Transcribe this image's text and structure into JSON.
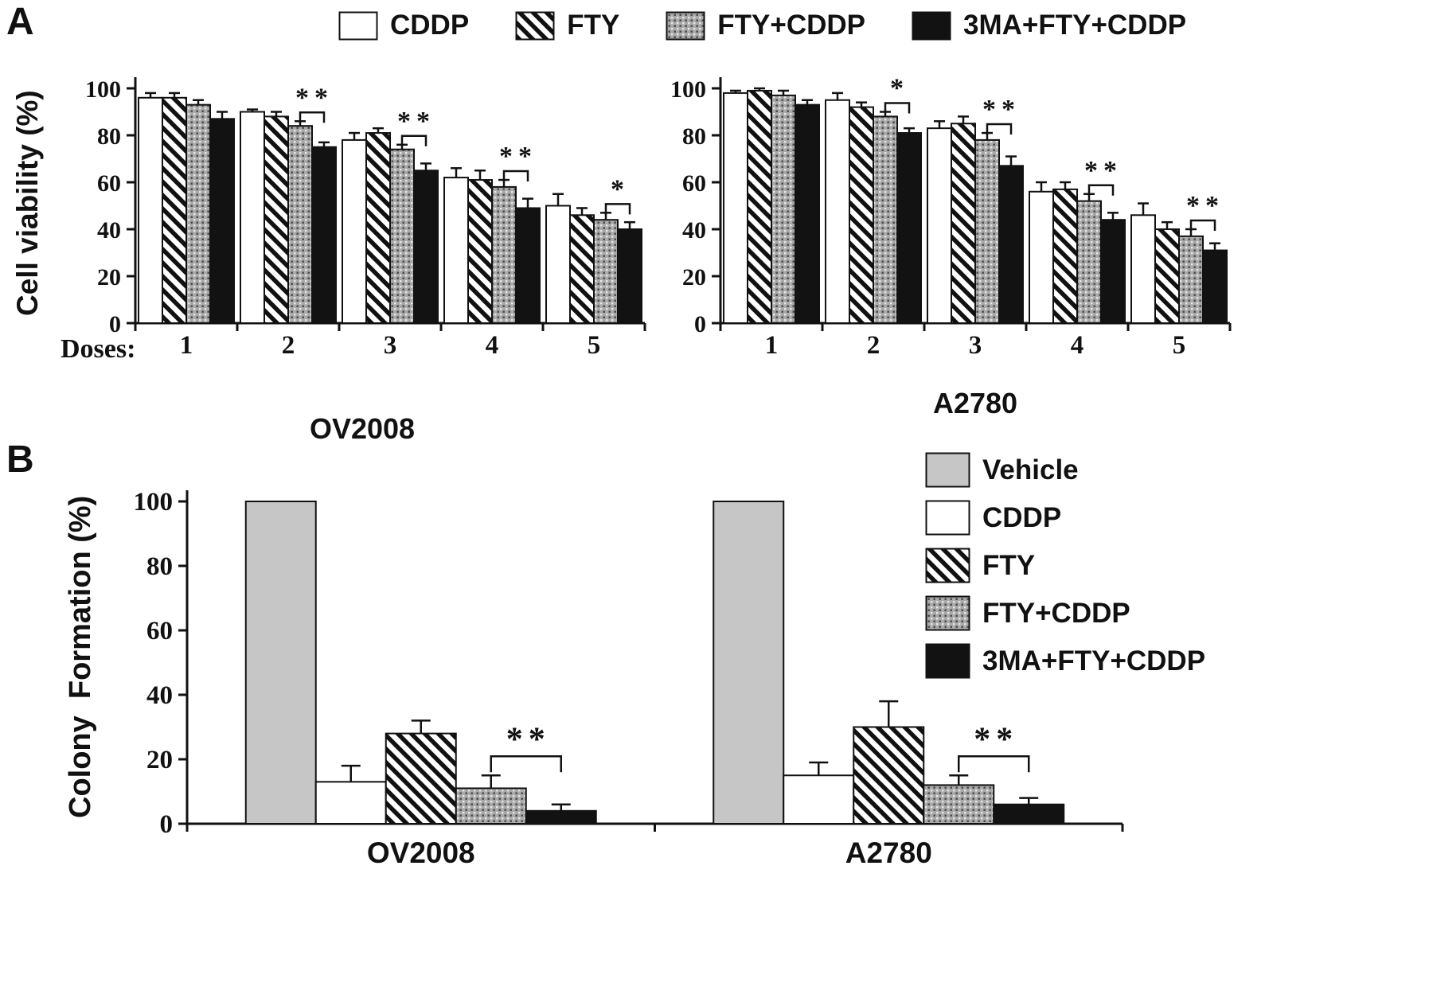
{
  "panels": {
    "a": {
      "label": "A",
      "ylabel": "Cell viability (%)",
      "doses_label": "Doses:",
      "legend": [
        {
          "name": "CDDP",
          "pattern": "white"
        },
        {
          "name": "FTY",
          "pattern": "stripes"
        },
        {
          "name": "FTY+CDDP",
          "pattern": "dots"
        },
        {
          "name": "3MA+FTY+CDDP",
          "pattern": "black"
        }
      ]
    },
    "b": {
      "label": "B",
      "ylabel": "Colony  Formation (%)",
      "legend": [
        {
          "name": "Vehicle",
          "pattern": "vehicle"
        },
        {
          "name": "CDDP",
          "pattern": "white"
        },
        {
          "name": "FTY",
          "pattern": "stripes"
        },
        {
          "name": "FTY+CDDP",
          "pattern": "dots"
        },
        {
          "name": "3MA+FTY+CDDP",
          "pattern": "black"
        }
      ]
    }
  },
  "colors": {
    "black": "#121212",
    "white": "#ffffff",
    "vehicle_gray": "#c6c6c6",
    "dots_gray": "#a9a9a9",
    "axis": "#111111"
  },
  "chart_data": [
    {
      "id": "ov2008-viability",
      "type": "bar",
      "title": "OV2008",
      "ylabel": "Cell viability (%)",
      "xlabel": "Doses",
      "categories": [
        "1",
        "2",
        "3",
        "4",
        "5"
      ],
      "ylim": [
        0,
        100
      ],
      "yticks": [
        0,
        20,
        40,
        60,
        80,
        100
      ],
      "grid": false,
      "series": [
        {
          "name": "CDDP",
          "pattern": "white",
          "values": [
            96,
            90,
            78,
            62,
            50
          ],
          "errors": [
            2,
            1,
            3,
            4,
            5
          ]
        },
        {
          "name": "FTY",
          "pattern": "stripes",
          "values": [
            96,
            88,
            81,
            61,
            46
          ],
          "errors": [
            2,
            2,
            2,
            4,
            3
          ]
        },
        {
          "name": "FTY+CDDP",
          "pattern": "dots",
          "values": [
            93,
            84,
            74,
            58,
            44
          ],
          "errors": [
            2,
            2,
            2,
            3,
            3
          ]
        },
        {
          "name": "3MA+FTY+CDDP",
          "pattern": "black",
          "values": [
            87,
            75,
            65,
            49,
            40
          ],
          "errors": [
            3,
            2,
            3,
            4,
            3
          ]
        }
      ],
      "significance": [
        {
          "category_index": 1,
          "bars": [
            2,
            3
          ],
          "label": "**"
        },
        {
          "category_index": 2,
          "bars": [
            2,
            3
          ],
          "label": "**"
        },
        {
          "category_index": 3,
          "bars": [
            2,
            3
          ],
          "label": "**"
        },
        {
          "category_index": 4,
          "bars": [
            2,
            3
          ],
          "label": "*"
        }
      ]
    },
    {
      "id": "a2780-viability",
      "type": "bar",
      "title": "A2780",
      "ylabel": "Cell viability (%)",
      "xlabel": "Doses",
      "categories": [
        "1",
        "2",
        "3",
        "4",
        "5"
      ],
      "ylim": [
        0,
        100
      ],
      "yticks": [
        0,
        20,
        40,
        60,
        80,
        100
      ],
      "grid": false,
      "series": [
        {
          "name": "CDDP",
          "pattern": "white",
          "values": [
            98,
            95,
            83,
            56,
            46
          ],
          "errors": [
            1,
            3,
            3,
            4,
            5
          ]
        },
        {
          "name": "FTY",
          "pattern": "stripes",
          "values": [
            99,
            92,
            85,
            57,
            40
          ],
          "errors": [
            1,
            2,
            3,
            3,
            3
          ]
        },
        {
          "name": "FTY+CDDP",
          "pattern": "dots",
          "values": [
            97,
            88,
            78,
            52,
            37
          ],
          "errors": [
            2,
            2,
            3,
            3,
            3
          ]
        },
        {
          "name": "3MA+FTY+CDDP",
          "pattern": "black",
          "values": [
            93,
            81,
            67,
            44,
            31
          ],
          "errors": [
            2,
            2,
            4,
            3,
            3
          ]
        }
      ],
      "significance": [
        {
          "category_index": 1,
          "bars": [
            2,
            3
          ],
          "label": "*"
        },
        {
          "category_index": 2,
          "bars": [
            2,
            3
          ],
          "label": "**"
        },
        {
          "category_index": 3,
          "bars": [
            2,
            3
          ],
          "label": "**"
        },
        {
          "category_index": 4,
          "bars": [
            2,
            3
          ],
          "label": "**"
        }
      ]
    },
    {
      "id": "colony-formation",
      "type": "bar",
      "title": "",
      "ylabel": "Colony Formation (%)",
      "xlabel": "",
      "categories": [
        "OV2008",
        "A2780"
      ],
      "ylim": [
        0,
        100
      ],
      "yticks": [
        0,
        20,
        40,
        60,
        80,
        100
      ],
      "grid": false,
      "series": [
        {
          "name": "Vehicle",
          "pattern": "vehicle",
          "values": [
            100,
            100
          ],
          "errors": [
            0,
            0
          ]
        },
        {
          "name": "CDDP",
          "pattern": "white",
          "values": [
            13,
            15
          ],
          "errors": [
            5,
            4
          ]
        },
        {
          "name": "FTY",
          "pattern": "stripes",
          "values": [
            28,
            30
          ],
          "errors": [
            4,
            8
          ]
        },
        {
          "name": "FTY+CDDP",
          "pattern": "dots",
          "values": [
            11,
            12
          ],
          "errors": [
            4,
            3
          ]
        },
        {
          "name": "3MA+FTY+CDDP",
          "pattern": "black",
          "values": [
            4,
            6
          ],
          "errors": [
            2,
            2
          ]
        }
      ],
      "significance": [
        {
          "category_index": 0,
          "bars": [
            3,
            4
          ],
          "label": "**"
        },
        {
          "category_index": 1,
          "bars": [
            3,
            4
          ],
          "label": "**"
        }
      ]
    }
  ]
}
